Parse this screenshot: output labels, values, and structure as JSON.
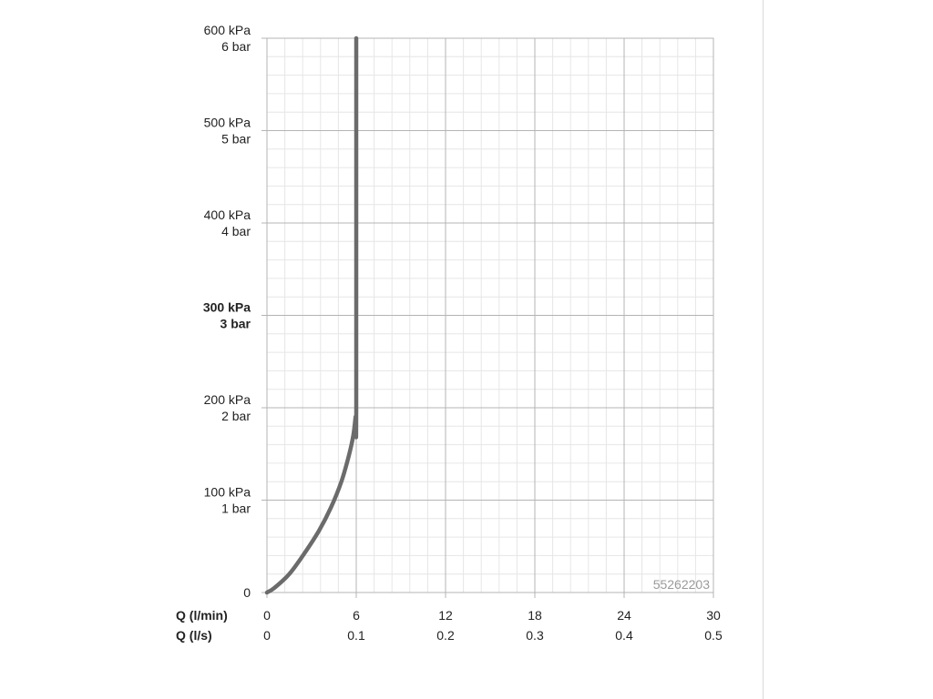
{
  "chart_data": {
    "type": "line",
    "x_axis_rows": [
      {
        "label": "Q (l/min)",
        "ticks": [
          "0",
          "6",
          "12",
          "18",
          "24",
          "30"
        ]
      },
      {
        "label": "Q (l/s)",
        "ticks": [
          "0",
          "0.1",
          "0.2",
          "0.3",
          "0.4",
          "0.5"
        ]
      }
    ],
    "xlim": [
      0,
      30
    ],
    "x_ticks": [
      0,
      6,
      12,
      18,
      24,
      30
    ],
    "ylim": [
      0,
      600
    ],
    "y_ticks": [
      {
        "value": 0,
        "lines": [
          "0"
        ],
        "bold": false
      },
      {
        "value": 100,
        "lines": [
          "100 kPa",
          "1 bar"
        ],
        "bold": false
      },
      {
        "value": 200,
        "lines": [
          "200 kPa",
          "2 bar"
        ],
        "bold": false
      },
      {
        "value": 300,
        "lines": [
          "300 kPa",
          "3 bar"
        ],
        "bold": true
      },
      {
        "value": 400,
        "lines": [
          "400 kPa",
          "4 bar"
        ],
        "bold": false
      },
      {
        "value": 500,
        "lines": [
          "500 kPa",
          "5 bar"
        ],
        "bold": false
      },
      {
        "value": 600,
        "lines": [
          "600 kPa",
          "6 bar"
        ],
        "bold": false
      }
    ],
    "grid": true,
    "minor_grid_divisions": 5,
    "series": [
      {
        "color": "#6b6b6b",
        "x": [
          0,
          0.5,
          1.5,
          2.5,
          3.5,
          4.3,
          5.0,
          5.5,
          5.8,
          5.95,
          6.0,
          6.0
        ],
        "y": [
          0,
          5,
          20,
          42,
          67,
          92,
          120,
          148,
          170,
          190,
          200,
          600
        ]
      }
    ],
    "annotation": "55262203"
  }
}
